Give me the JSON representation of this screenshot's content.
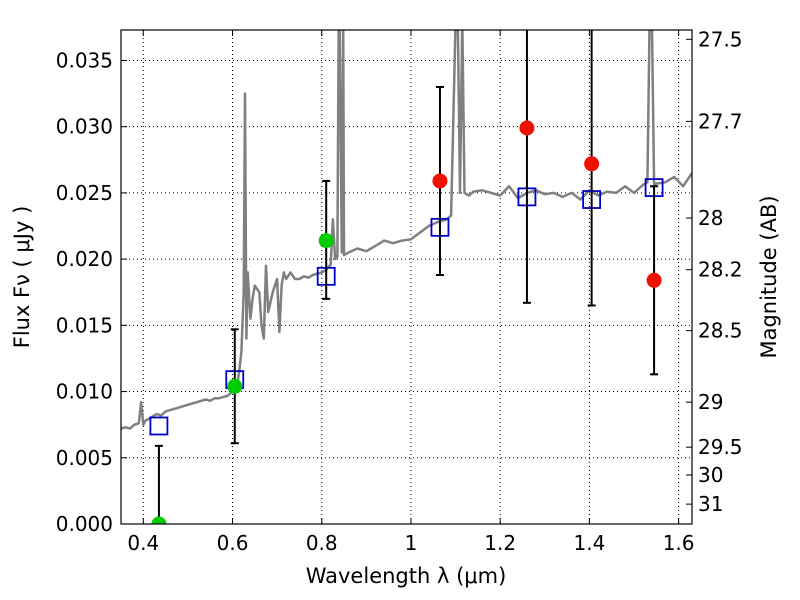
{
  "chart_data": {
    "type": "scatter",
    "title": "",
    "xlabel": "Wavelength  λ (μm)",
    "ylabel": "Flux  Fν  ( μJy )",
    "y2label": "Magnitude (AB)",
    "xlim": [
      0.35,
      1.63
    ],
    "ylim": [
      0.0,
      0.0373
    ],
    "grid": true,
    "x_ticks": [
      0.4,
      0.6,
      0.8,
      1.0,
      1.2,
      1.4,
      1.6
    ],
    "x_tick_labels": [
      "0.4",
      "0.6",
      "0.8",
      "1",
      "1.2",
      "1.4",
      "1.6"
    ],
    "y_ticks": [
      0.0,
      0.005,
      0.01,
      0.015,
      0.02,
      0.025,
      0.03,
      0.035
    ],
    "y_tick_labels": [
      "0.000",
      "0.005",
      "0.010",
      "0.015",
      "0.020",
      "0.025",
      "0.030",
      "0.035"
    ],
    "y2_ticks": [
      {
        "label": "27.5",
        "flux": 0.0366
      },
      {
        "label": "27.7",
        "flux": 0.0304
      },
      {
        "label": "28",
        "flux": 0.0231
      },
      {
        "label": "28.2",
        "flux": 0.0192
      },
      {
        "label": "28.5",
        "flux": 0.0146
      },
      {
        "label": "29",
        "flux": 0.0092
      },
      {
        "label": "29.5",
        "flux": 0.0058
      },
      {
        "label": "30",
        "flux": 0.0037
      },
      {
        "label": "31",
        "flux": 0.0015
      }
    ],
    "colors": {
      "model_spectrum": "#808080",
      "model_photometry": "#0000cc",
      "detections": "#00cc00",
      "upper_limits": "#ee1100",
      "errorbar": "#000000"
    },
    "series": [
      {
        "kind": "line",
        "x": [
          0.35,
          0.36,
          0.37,
          0.38,
          0.39,
          0.395,
          0.4,
          0.405,
          0.41,
          0.42,
          0.43,
          0.44,
          0.45,
          0.46,
          0.47,
          0.48,
          0.49,
          0.5,
          0.51,
          0.52,
          0.53,
          0.54,
          0.55,
          0.56,
          0.57,
          0.58,
          0.59,
          0.6,
          0.61,
          0.615,
          0.62,
          0.625,
          0.628,
          0.631,
          0.634,
          0.64,
          0.645,
          0.65,
          0.66,
          0.665,
          0.67,
          0.675,
          0.68,
          0.69,
          0.7,
          0.705,
          0.71,
          0.715,
          0.72,
          0.73,
          0.74,
          0.75,
          0.76,
          0.77,
          0.78,
          0.79,
          0.8,
          0.81,
          0.82,
          0.825,
          0.83,
          0.835,
          0.838,
          0.84,
          0.845,
          0.848,
          0.85,
          0.86,
          0.88,
          0.9,
          0.92,
          0.94,
          0.96,
          0.98,
          1.0,
          1.02,
          1.04,
          1.06,
          1.08,
          1.09,
          1.1,
          1.105,
          1.11,
          1.115,
          1.12,
          1.13,
          1.14,
          1.16,
          1.18,
          1.2,
          1.22,
          1.24,
          1.26,
          1.28,
          1.3,
          1.32,
          1.34,
          1.36,
          1.38,
          1.4,
          1.42,
          1.44,
          1.46,
          1.48,
          1.5,
          1.52,
          1.53,
          1.535,
          1.54,
          1.545,
          1.55,
          1.57,
          1.59,
          1.61,
          1.63
        ],
        "y": [
          0.0072,
          0.0073,
          0.0072,
          0.0075,
          0.0076,
          0.0092,
          0.0075,
          0.0078,
          0.0079,
          0.0081,
          0.0083,
          0.0082,
          0.0085,
          0.0086,
          0.0087,
          0.0088,
          0.0089,
          0.009,
          0.0091,
          0.0092,
          0.0093,
          0.0094,
          0.0093,
          0.0095,
          0.0095,
          0.0096,
          0.0097,
          0.01,
          0.0104,
          0.0115,
          0.013,
          0.0175,
          0.0325,
          0.014,
          0.019,
          0.0155,
          0.017,
          0.018,
          0.0175,
          0.015,
          0.014,
          0.0195,
          0.016,
          0.0175,
          0.0185,
          0.0145,
          0.018,
          0.019,
          0.0185,
          0.019,
          0.0185,
          0.0185,
          0.0187,
          0.0186,
          0.0188,
          0.0189,
          0.019,
          0.0192,
          0.0196,
          0.023,
          0.02,
          0.0202,
          0.038,
          0.038,
          0.0205,
          0.038,
          0.0203,
          0.0205,
          0.0208,
          0.0206,
          0.021,
          0.0214,
          0.0212,
          0.0214,
          0.0215,
          0.022,
          0.0225,
          0.0228,
          0.023,
          0.0233,
          0.038,
          0.038,
          0.025,
          0.038,
          0.025,
          0.0248,
          0.0251,
          0.0252,
          0.025,
          0.0248,
          0.0255,
          0.0246,
          0.025,
          0.0252,
          0.0249,
          0.025,
          0.0247,
          0.025,
          0.0245,
          0.0252,
          0.0248,
          0.0251,
          0.025,
          0.0255,
          0.025,
          0.0256,
          0.0258,
          0.038,
          0.038,
          0.0256,
          0.0257,
          0.0258,
          0.0262,
          0.0255,
          0.0265
        ]
      },
      {
        "kind": "squares",
        "x": [
          0.435,
          0.605,
          0.81,
          1.065,
          1.26,
          1.405,
          1.545
        ],
        "y": [
          0.0074,
          0.0109,
          0.0187,
          0.0224,
          0.0247,
          0.0245,
          0.0254
        ]
      },
      {
        "kind": "points",
        "color": "detections",
        "x": [
          0.435,
          0.605,
          0.81
        ],
        "y": [
          0.0,
          0.0104,
          0.0214
        ],
        "err_low": [
          0.0,
          0.0043,
          0.0044
        ],
        "err_high": [
          0.0059,
          0.0043,
          0.0045
        ]
      },
      {
        "kind": "points",
        "color": "upper_limits",
        "x": [
          1.065,
          1.26,
          1.405,
          1.545
        ],
        "y": [
          0.0259,
          0.0299,
          0.0272,
          0.0184
        ],
        "err_low": [
          0.0071,
          0.0132,
          0.0107,
          0.0071
        ],
        "err_high": [
          0.0071,
          0.0132,
          0.0107,
          0.0071
        ]
      }
    ]
  }
}
